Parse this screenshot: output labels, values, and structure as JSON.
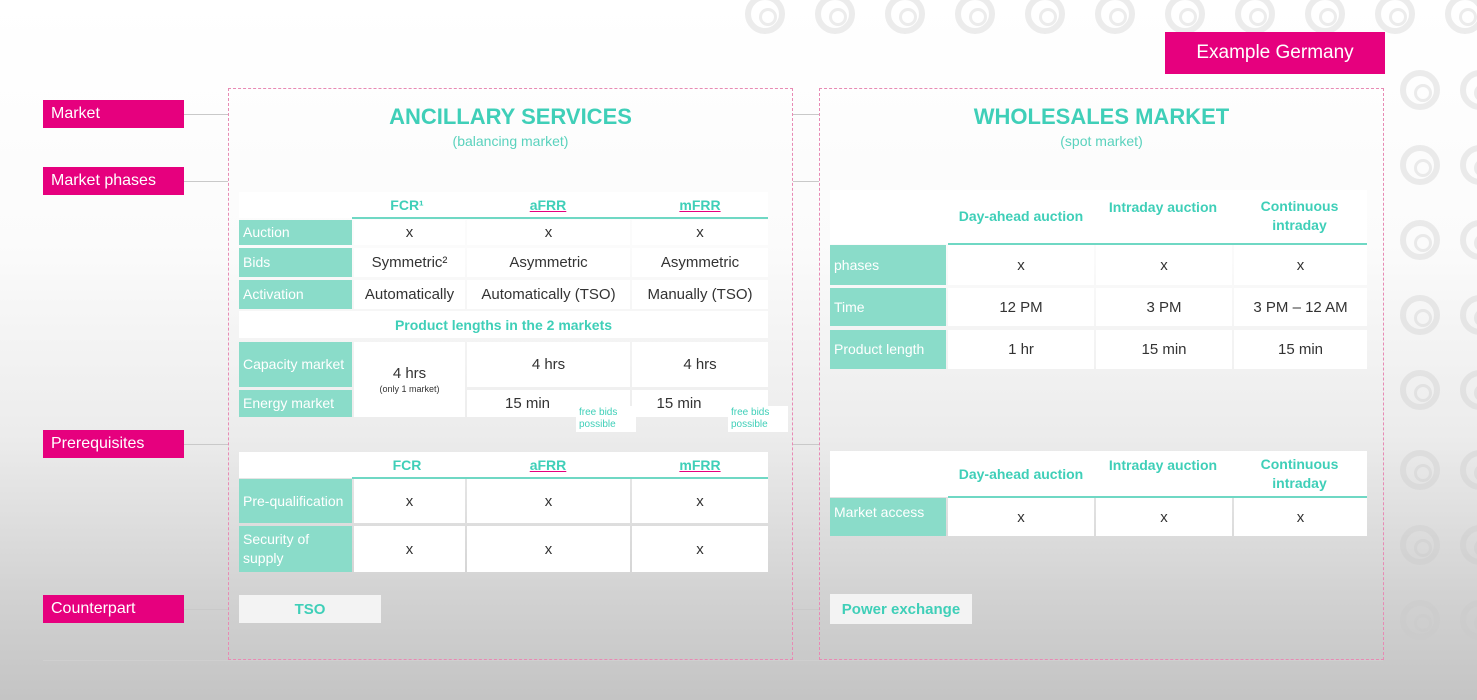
{
  "example_label": "Example Germany",
  "side_labels": {
    "market": "Market",
    "market_phases": "Market phases",
    "prerequisites": "Prerequisites",
    "counterpart": "Counterpart"
  },
  "ancillary": {
    "title": "ANCILLARY SERVICES",
    "subtitle": "(balancing market)",
    "phases_table": {
      "columns": [
        "FCR¹",
        "aFRR",
        "mFRR"
      ],
      "rows": [
        {
          "label": "Auction",
          "values": [
            "x",
            "x",
            "x"
          ]
        },
        {
          "label": "Bids",
          "values": [
            "Symmetric²",
            "Asymmetric",
            "Asymmetric"
          ]
        },
        {
          "label": "Activation",
          "values": [
            "Automatically",
            "Automatically (TSO)",
            "Manually (TSO)"
          ]
        }
      ],
      "product_heading": "Product lengths in the 2 markets",
      "capacity_label": "Capacity market",
      "energy_label": "Energy market",
      "fcr_length": "4 hrs",
      "fcr_note": "(only 1 market)",
      "afrr_capacity": "4 hrs",
      "mfrr_capacity": "4 hrs",
      "afrr_energy": "15 min",
      "mfrr_energy": "15 min",
      "free_bids_1": "free bids possible",
      "free_bids_2": "free bids possible"
    },
    "prereq_table": {
      "columns": [
        "FCR",
        "aFRR",
        "mFRR"
      ],
      "rows": [
        {
          "label": "Pre-qualification",
          "values": [
            "x",
            "x",
            "x"
          ]
        },
        {
          "label": "Security of supply",
          "values": [
            "x",
            "x",
            "x"
          ]
        }
      ]
    },
    "counterpart": "TSO"
  },
  "wholesale": {
    "title": "WHOLESALES MARKET",
    "subtitle": "(spot market)",
    "phases_table": {
      "columns": [
        "Day-ahead auction",
        "Intraday auction",
        "Continuous intraday"
      ],
      "rows": [
        {
          "label": "phases",
          "values": [
            "x",
            "x",
            "x"
          ]
        },
        {
          "label": "Time",
          "values": [
            "12 PM",
            "3 PM",
            "3 PM – 12 AM"
          ]
        },
        {
          "label": "Product length",
          "values": [
            "1 hr",
            "15 min",
            "15 min"
          ]
        }
      ]
    },
    "prereq_table": {
      "columns": [
        "Day-ahead auction",
        "Intraday auction",
        "Continuous intraday"
      ],
      "rows": [
        {
          "label": "Market access",
          "values": [
            "x",
            "x",
            "x"
          ]
        }
      ]
    },
    "counterpart": "Power exchange"
  }
}
